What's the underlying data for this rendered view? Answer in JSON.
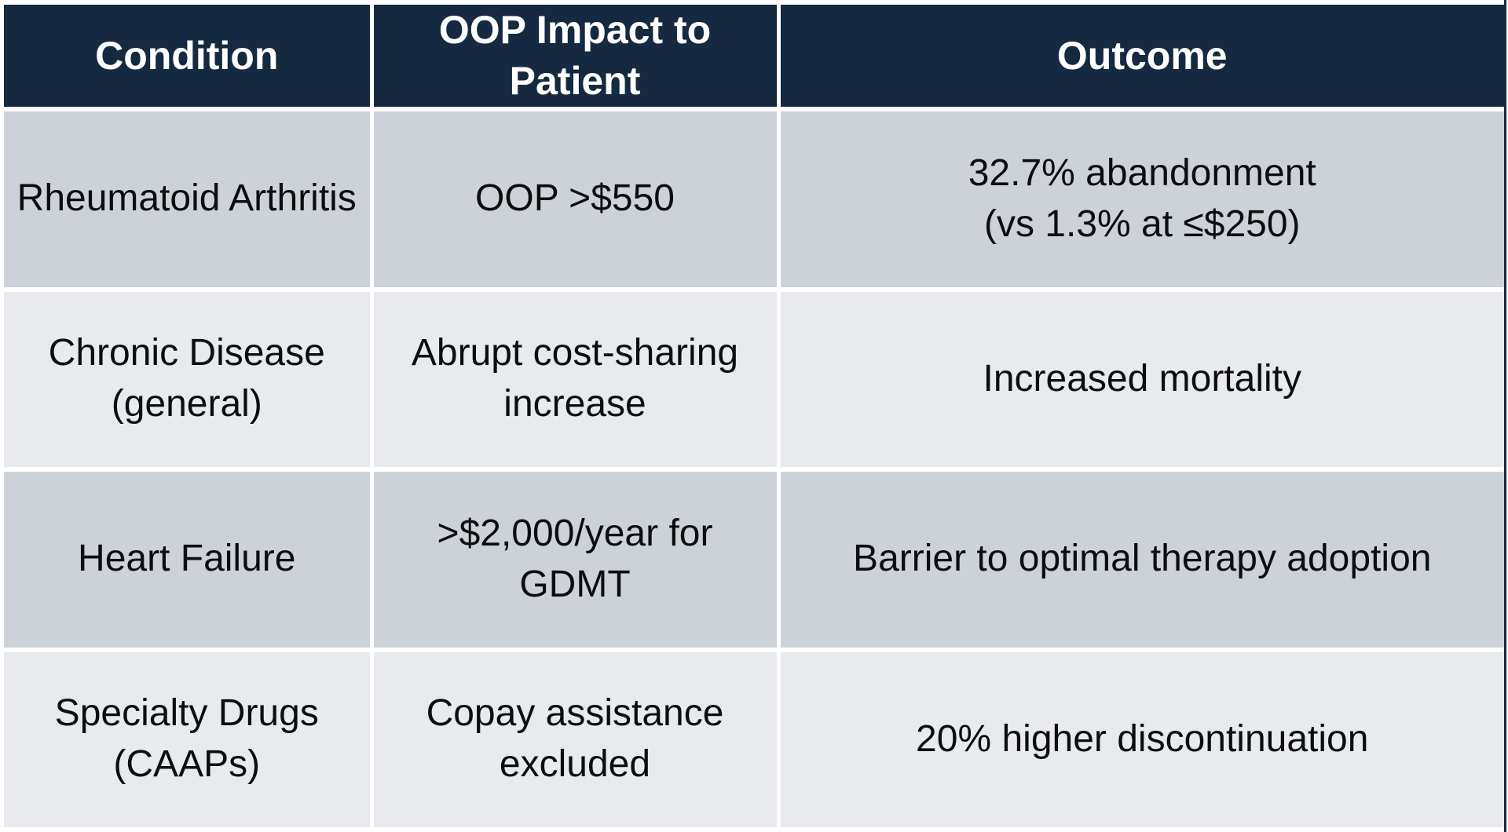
{
  "table": {
    "columns": [
      {
        "label": "Condition"
      },
      {
        "label": "OOP Impact to Patient"
      },
      {
        "label": "Outcome"
      }
    ],
    "rows": [
      {
        "condition": "Rheumatoid Arthritis",
        "impact": "OOP >$550",
        "outcome": "32.7% abandonment\n(vs 1.3% at ≤$250)"
      },
      {
        "condition": "Chronic Disease (general)",
        "impact": "Abrupt cost-sharing increase",
        "outcome": "Increased mortality"
      },
      {
        "condition": "Heart Failure",
        "impact": ">$2,000/year for GDMT",
        "outcome": "Barrier to optimal therapy adoption"
      },
      {
        "condition": "Specialty Drugs (CAAPs)",
        "impact": "Copay assistance excluded",
        "outcome": "20% higher discontinuation"
      }
    ]
  },
  "colors": {
    "header_background": "#152A40",
    "header_text": "#FFFFFF",
    "row_shade_dark": "#CDD1D8",
    "row_shade_light": "#E8EAED",
    "gridline": "#FFFFFF",
    "body_text": "#0B0D0F"
  }
}
